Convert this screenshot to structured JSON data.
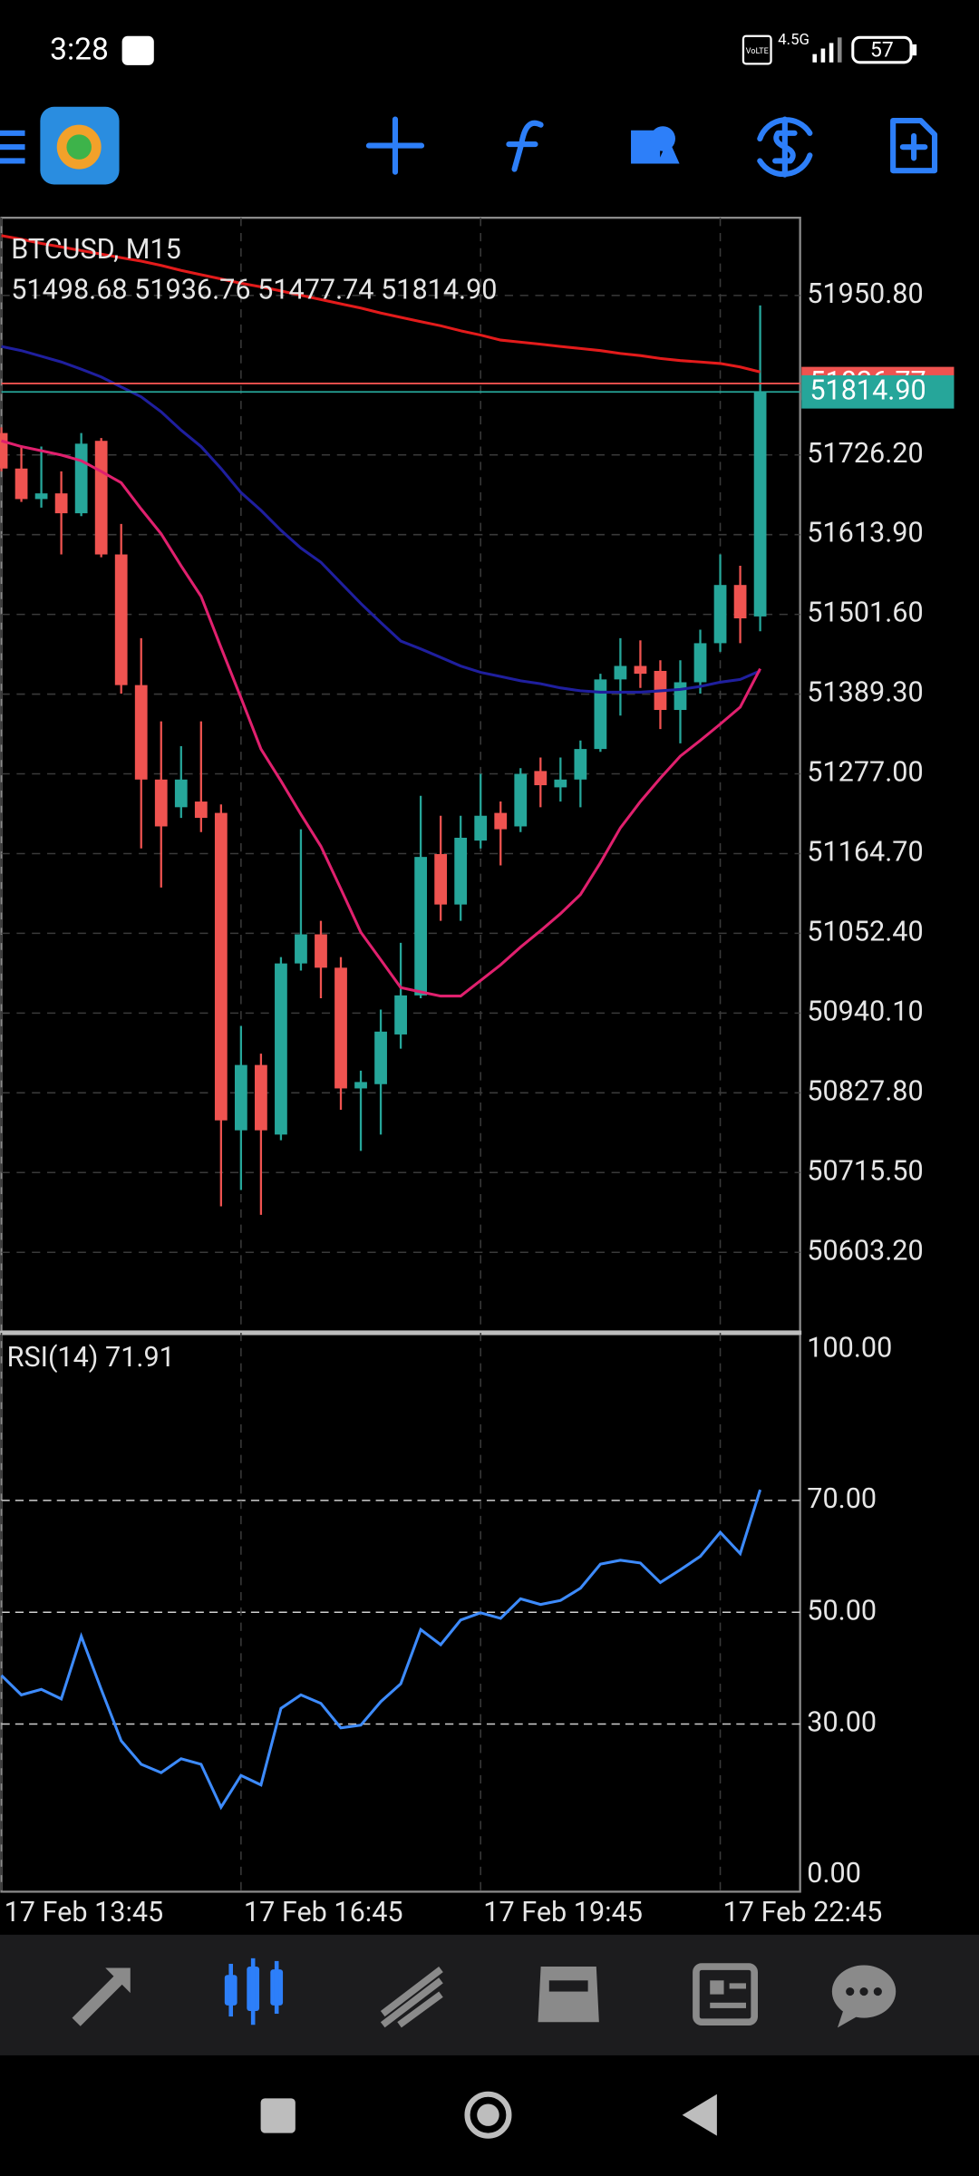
{
  "status_bar": {
    "time": "3:28",
    "volte": "VoLTE",
    "network": "4.5G",
    "battery": "57"
  },
  "chart_data": [
    {
      "type": "candlestick",
      "title": "BTCUSD, M15",
      "subtitle": "51498.68 51936.76 51477.74 51814.90",
      "up_color": "#26a69a",
      "down_color": "#ef5350",
      "open": [
        51757,
        51707,
        51664,
        51672,
        51644,
        51746,
        51586,
        51402,
        51269,
        51230,
        51238,
        51222,
        50775,
        50867,
        50769,
        51010,
        51051,
        51004,
        50834,
        50840,
        50910,
        50965,
        51164,
        51093,
        51183,
        51222,
        51203,
        51281,
        51258,
        51269,
        51312,
        51410,
        51429,
        51422,
        51367,
        51406,
        51461,
        51543,
        51498.68
      ],
      "high": [
        51765,
        51738,
        51738,
        51703,
        51757,
        51750,
        51629,
        51468,
        51351,
        51316,
        51351,
        51234,
        50922,
        50883,
        51019,
        51199,
        51070,
        51019,
        50859,
        50945,
        51039,
        51246,
        51218,
        51218,
        51277,
        51238,
        51285,
        51300,
        51300,
        51324,
        51418,
        51468,
        51465,
        51437,
        51437,
        51480,
        51586,
        51570,
        51936.76
      ],
      "low": [
        51703,
        51660,
        51652,
        51586,
        51640,
        51582,
        51390,
        51172,
        51117,
        51215,
        51195,
        50668,
        50691,
        50656,
        50761,
        51000,
        50961,
        50804,
        50746,
        50769,
        50890,
        50961,
        51070,
        51070,
        51172,
        51148,
        51195,
        51230,
        51238,
        51230,
        51308,
        51359,
        51398,
        51340,
        51320,
        51390,
        51449,
        51461,
        51477.74
      ],
      "close": [
        51707,
        51664,
        51672,
        51644,
        51742,
        51586,
        51402,
        51269,
        51203,
        51269,
        51215,
        50789,
        50867,
        50775,
        51010,
        51051,
        51004,
        50834,
        50843,
        50914,
        50965,
        51160,
        51093,
        51187,
        51218,
        51199,
        51277,
        51261,
        51269,
        51312,
        51410,
        51429,
        51418,
        51367,
        51406,
        51461,
        51543,
        51496,
        51814.9
      ],
      "overlays": [
        {
          "color": "#e31b1b",
          "values": [
            52035,
            52030,
            52024,
            52019,
            52014,
            52009,
            52004,
            51999,
            51993,
            51986,
            51980,
            51974,
            51968,
            51963,
            51957,
            51951,
            51945,
            51939,
            51933,
            51926,
            51920,
            51914,
            51908,
            51901,
            51895,
            51888,
            51885,
            51882,
            51879,
            51876,
            51873,
            51869,
            51866,
            51862,
            51859,
            51857,
            51855,
            51850,
            51843
          ]
        },
        {
          "color": "#1f1f9e",
          "values": [
            51879,
            51873,
            51865,
            51857,
            51847,
            51836,
            51822,
            51808,
            51787,
            51761,
            51738,
            51707,
            51673,
            51648,
            51620,
            51595,
            51575,
            51546,
            51517,
            51490,
            51464,
            51453,
            51441,
            51429,
            51420,
            51414,
            51408,
            51404,
            51398,
            51394,
            51392,
            51392,
            51392,
            51394,
            51396,
            51400,
            51406,
            51410,
            51422
          ]
        },
        {
          "color": "#e0206e",
          "values": [
            51746,
            51738,
            51732,
            51726,
            51718,
            51703,
            51687,
            51650,
            51615,
            51570,
            51527,
            51455,
            51384,
            51312,
            51267,
            51220,
            51175,
            51115,
            51054,
            51015,
            50976,
            50970,
            50964,
            50964,
            50986,
            51008,
            51033,
            51056,
            51080,
            51107,
            51152,
            51201,
            51238,
            51271,
            51302,
            51324,
            51347,
            51371,
            51425
          ]
        }
      ],
      "ask_line": {
        "value": 51826.77,
        "label": "51826.77",
        "color": "#ef5350"
      },
      "bid_line": {
        "value": 51814.9,
        "label": "51814.90",
        "color": "#26a69a"
      },
      "ylim": [
        50491.8,
        52060.2
      ],
      "yticks": [
        {
          "value": 51950.8,
          "label": "51950.80"
        },
        {
          "value": 51726.2,
          "label": "51726.20"
        },
        {
          "value": 51613.9,
          "label": "51613.90"
        },
        {
          "value": 51501.6,
          "label": "51501.60"
        },
        {
          "value": 51389.3,
          "label": "51389.30"
        },
        {
          "value": 51277,
          "label": "51277.00"
        },
        {
          "value": 51164.7,
          "label": "51164.70"
        },
        {
          "value": 51052.4,
          "label": "51052.40"
        },
        {
          "value": 50940.1,
          "label": "50940.10"
        },
        {
          "value": 50827.8,
          "label": "50827.80"
        },
        {
          "value": 50715.5,
          "label": "50715.50"
        },
        {
          "value": 50603.2,
          "label": "50603.20"
        }
      ],
      "grid": true
    },
    {
      "type": "line",
      "title": "RSI(14) 71.91",
      "color": "#3d8bfd",
      "categories": [
        "17 Feb 13:45",
        null,
        null,
        null,
        null,
        null,
        null,
        null,
        null,
        null,
        null,
        null,
        "17 Feb 16:45",
        null,
        null,
        null,
        null,
        null,
        null,
        null,
        null,
        null,
        null,
        null,
        "17 Feb 19:45",
        null,
        null,
        null,
        null,
        null,
        null,
        null,
        null,
        null,
        null,
        null,
        "17 Feb 22:45",
        null,
        null
      ],
      "values": [
        38.7,
        35.2,
        36.2,
        34.5,
        45.7,
        36.2,
        27,
        22.8,
        21.3,
        23.8,
        22.8,
        15.1,
        20.8,
        19.1,
        32.8,
        35.2,
        33.7,
        29.3,
        29.8,
        34.0,
        37.2,
        46.9,
        44.2,
        48.6,
        49.9,
        48.9,
        52.4,
        51.4,
        52.1,
        54.3,
        58.6,
        59.3,
        58.8,
        55.3,
        57.6,
        60.0,
        64.3,
        60.5,
        71.91
      ],
      "ylim": [
        0,
        100
      ],
      "yticks": [
        {
          "value": 0,
          "label": "0.00"
        },
        {
          "value": 30,
          "label": "30.00"
        },
        {
          "value": 50,
          "label": "50.00"
        },
        {
          "value": 70,
          "label": "70.00"
        },
        {
          "value": 100,
          "label": "100.00"
        }
      ],
      "grid": true
    }
  ]
}
